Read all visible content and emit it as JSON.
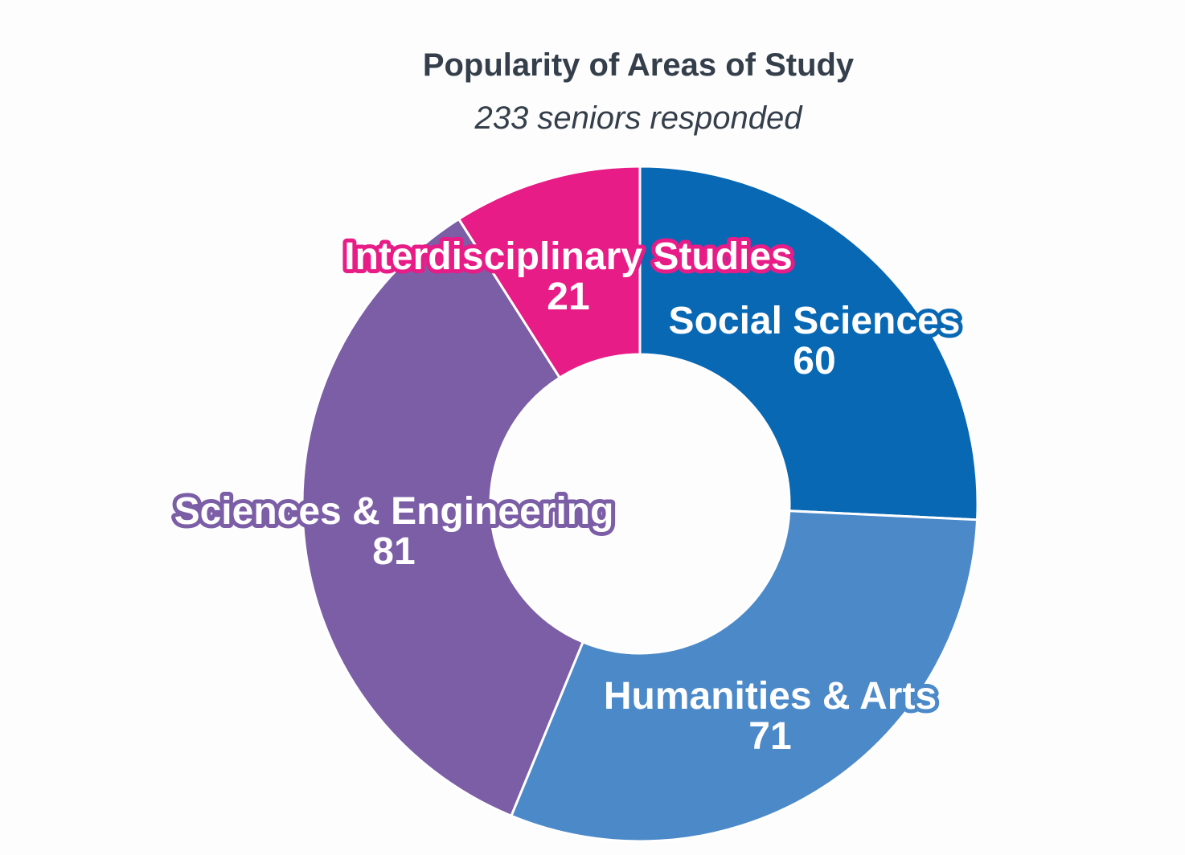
{
  "chart_data": {
    "type": "pie",
    "variant": "donut",
    "title": "Popularity of Areas of Study",
    "subtitle": "233 seniors responded",
    "slices": [
      {
        "label": "Social Sciences",
        "value": 60,
        "color": "#0868b4"
      },
      {
        "label": "Humanities & Arts",
        "value": 71,
        "color": "#4b89c8"
      },
      {
        "label": "Sciences & Engineering",
        "value": 81,
        "color": "#7b5ea6"
      },
      {
        "label": "Interdisciplinary Studies",
        "value": 21,
        "color": "#e81c87"
      }
    ],
    "total": 233
  }
}
